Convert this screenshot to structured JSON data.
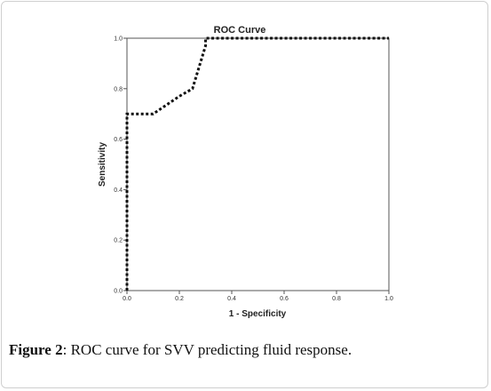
{
  "caption": {
    "label": "Figure 2",
    "separator": ":",
    "text": " ROC curve for SVV predicting fluid response."
  },
  "chart_data": {
    "type": "line",
    "title": "ROC Curve",
    "xlabel": "1 - Specificity",
    "ylabel": "Sensitivity",
    "xlim": [
      0,
      1
    ],
    "ylim": [
      0,
      1
    ],
    "xticks": [
      "0.0",
      "0.2",
      "0.4",
      "0.6",
      "0.8",
      "1.0"
    ],
    "yticks": [
      "0.0",
      "0.2",
      "0.4",
      "0.6",
      "0.8",
      "1.0"
    ],
    "grid": false,
    "series": [
      {
        "color": "#111111",
        "style": "dotted",
        "x": [
          0.0,
          0.0,
          0.1,
          0.2,
          0.25,
          0.3,
          0.3,
          1.0
        ],
        "y": [
          0.0,
          0.7,
          0.7,
          0.77,
          0.8,
          0.97,
          1.0,
          1.0
        ]
      }
    ]
  }
}
